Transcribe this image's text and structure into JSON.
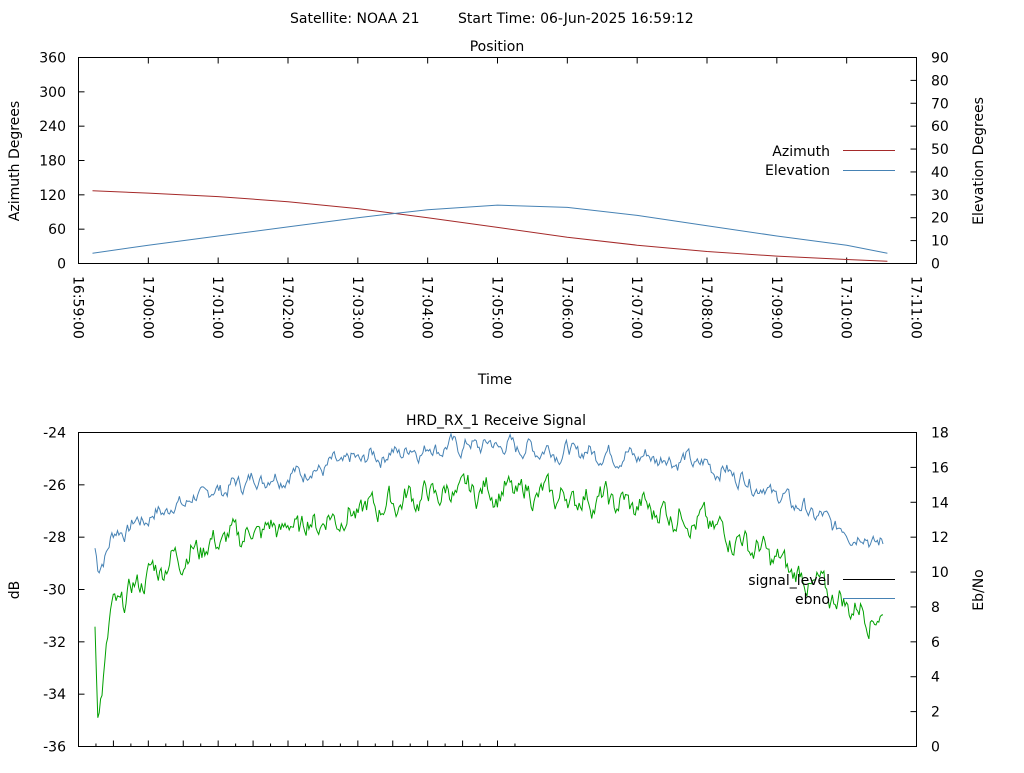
{
  "header": {
    "satellite": "Satellite: NOAA 21",
    "start_time": "Start Time: 06-Jun-2025 16:59:12"
  },
  "chart_data": [
    {
      "type": "line",
      "title": "Position",
      "xlabel": "Time",
      "ylabel": "Azimuth Degrees",
      "y2label": "Elevation Degrees",
      "xlim": [
        "16:59:00",
        "17:11:00"
      ],
      "ylim": [
        0,
        360
      ],
      "y2lim": [
        0,
        90
      ],
      "x_ticks": [
        "16:59:00",
        "17:00:00",
        "17:01:00",
        "17:02:00",
        "17:03:00",
        "17:04:00",
        "17:05:00",
        "17:06:00",
        "17:07:00",
        "17:08:00",
        "17:09:00",
        "17:10:00",
        "17:11:00"
      ],
      "y_ticks": [
        "0",
        "60",
        "120",
        "180",
        "240",
        "300",
        "360"
      ],
      "y2_ticks": [
        "0",
        "10",
        "20",
        "30",
        "40",
        "50",
        "60",
        "70",
        "80",
        "90"
      ],
      "legend_position": "right",
      "x": [
        "16:59:12",
        "17:00:00",
        "17:01:00",
        "17:02:00",
        "17:03:00",
        "17:04:00",
        "17:05:00",
        "17:06:00",
        "17:07:00",
        "17:08:00",
        "17:09:00",
        "17:10:00",
        "17:10:35"
      ],
      "series": [
        {
          "name": "Azimuth",
          "axis": "left",
          "color": "#a52a2a",
          "values": [
            127,
            123,
            117,
            108,
            96,
            80,
            63,
            46,
            32,
            21,
            13,
            7,
            4
          ]
        },
        {
          "name": "Elevation",
          "axis": "right",
          "color": "#4682b4",
          "values": [
            4.5,
            8,
            12,
            16,
            20,
            23.5,
            25.5,
            24.5,
            21,
            16.5,
            12,
            8,
            4.5
          ]
        }
      ]
    },
    {
      "type": "line",
      "title": "HRD_RX_1 Receive Signal",
      "ylabel": "dB",
      "y2label": "Eb/No",
      "ylim": [
        -36,
        -24
      ],
      "y2lim": [
        0,
        18
      ],
      "y_ticks": [
        "-36",
        "-34",
        "-32",
        "-30",
        "-28",
        "-26",
        "-24"
      ],
      "y2_ticks": [
        "0",
        "2",
        "4",
        "6",
        "8",
        "10",
        "12",
        "14",
        "16",
        "18"
      ],
      "legend_position": "right",
      "x_fraction": [
        0.0,
        0.004,
        0.02,
        0.06,
        0.1,
        0.15,
        0.2,
        0.25,
        0.3,
        0.35,
        0.4,
        0.45,
        0.5,
        0.55,
        0.6,
        0.65,
        0.7,
        0.75,
        0.8,
        0.85,
        0.9,
        0.95,
        0.98,
        1.0
      ],
      "series": [
        {
          "name": "signal_level",
          "axis": "left",
          "color": "#000000",
          "values": []
        },
        {
          "name": "ebno",
          "axis": "right",
          "color": "#4682b4",
          "values": [
            11.2,
            10.0,
            12.0,
            13.0,
            13.8,
            14.6,
            15.3,
            15.6,
            16.1,
            16.6,
            17.0,
            17.2,
            17.3,
            17.1,
            16.9,
            16.8,
            16.6,
            16.4,
            15.8,
            14.8,
            13.6,
            12.4,
            12.0,
            11.5
          ]
        },
        {
          "name": "",
          "axis": "left",
          "color": "#00a000",
          "values": [
            -31.6,
            -34.8,
            -31.0,
            -29.6,
            -28.8,
            -28.2,
            -27.8,
            -27.6,
            -27.3,
            -26.9,
            -26.5,
            -26.3,
            -26.2,
            -26.3,
            -26.5,
            -26.6,
            -26.9,
            -27.2,
            -27.8,
            -28.6,
            -29.6,
            -30.5,
            -30.9,
            -31.2
          ]
        }
      ]
    }
  ]
}
